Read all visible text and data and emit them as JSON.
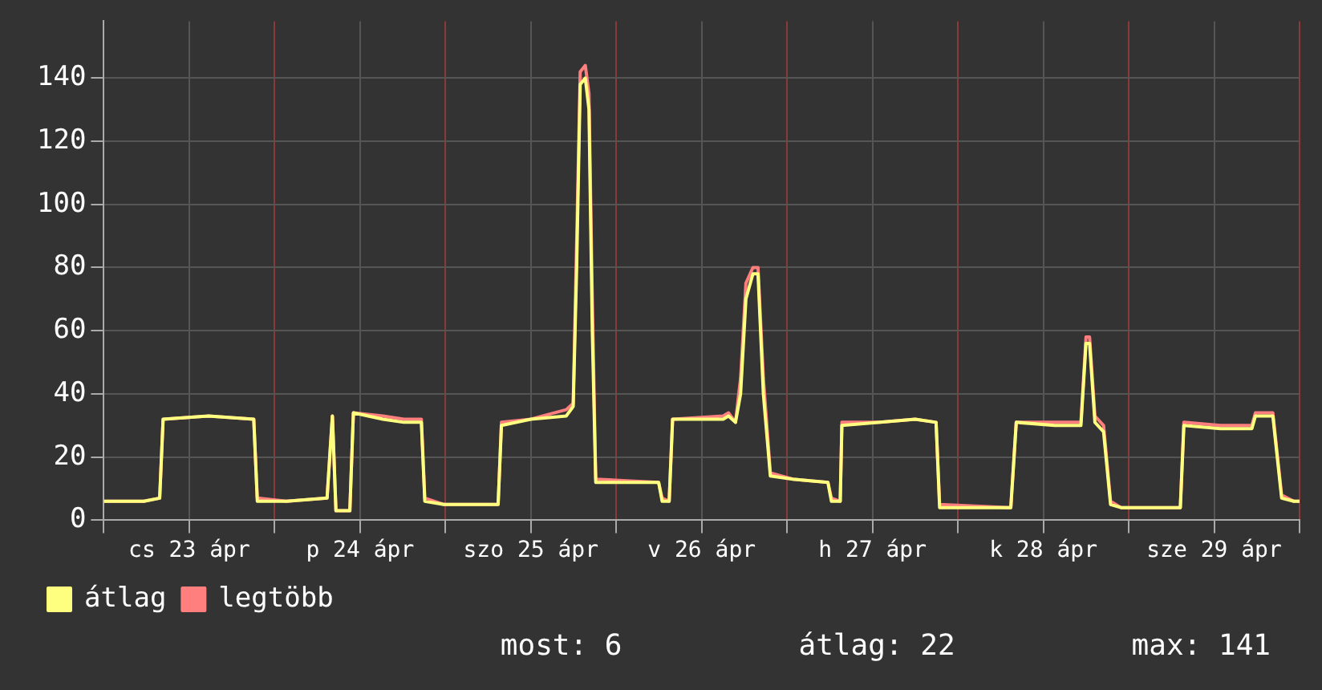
{
  "chart_data": {
    "type": "line",
    "marker": "none",
    "line_style": "solid",
    "grid": true,
    "legend": "bottom left",
    "xlim": [
      "--04-23T00:00",
      "--04-30T00:00"
    ],
    "xticks": [
      {
        "value": "--04-23T00:00",
        "label": null
      },
      {
        "value": "--04-23T12:00",
        "label": "cs 23 ápr"
      },
      {
        "value": "--04-24T00:00",
        "label": null
      },
      {
        "value": "--04-24T12:00",
        "label": "p 24 ápr"
      },
      {
        "value": "--04-25T00:00",
        "label": null
      },
      {
        "value": "--04-25T12:00",
        "label": "szo 25 ápr"
      },
      {
        "value": "--04-26T00:00",
        "label": null
      },
      {
        "value": "--04-26T12:00",
        "label": "v 26 ápr"
      },
      {
        "value": "--04-27T00:00",
        "label": null
      },
      {
        "value": "--04-27T12:00",
        "label": "h 27 ápr"
      },
      {
        "value": "--04-28T00:00",
        "label": null
      },
      {
        "value": "--04-28T12:00",
        "label": "k 28 ápr"
      },
      {
        "value": "--04-29T00:00",
        "label": null
      },
      {
        "value": "--04-29T12:00",
        "label": "sze 29 ápr"
      },
      {
        "value": "--04-30T00:00",
        "label": null
      }
    ],
    "ylim": [
      0,
      158
    ],
    "yticks": [
      0,
      20,
      40,
      60,
      80,
      100,
      120,
      140
    ],
    "x": [
      "--04-23T00:00",
      "--04-23T05:38",
      "--04-23T07:51",
      "--04-23T08:20",
      "--04-23T14:43",
      "--04-23T21:04",
      "--04-23T21:34",
      "--04-24T01:41",
      "--04-24T07:22",
      "--04-24T08:07",
      "--04-24T08:37",
      "--04-24T10:34",
      "--04-24T11:04",
      "--04-24T15:13",
      "--04-24T18:10",
      "--04-24T20:37",
      "--04-24T21:06",
      "--04-24T23:46",
      "--04-25T07:24",
      "--04-25T07:52",
      "--04-25T12:00",
      "--04-25T16:58",
      "--04-25T17:57",
      "--04-25T18:26",
      "--04-25T18:56",
      "--04-25T19:39",
      "--04-25T20:10",
      "--04-25T20:38",
      "--04-25T21:07",
      "--04-26T05:57",
      "--04-26T06:27",
      "--04-26T07:26",
      "--04-26T07:55",
      "--04-26T15:01",
      "--04-26T15:46",
      "--04-26T16:45",
      "--04-26T17:28",
      "--04-26T18:13",
      "--04-26T19:12",
      "--04-26T19:55",
      "--04-26T20:40",
      "--04-26T21:39",
      "--04-27T00:50",
      "--04-27T05:44",
      "--04-27T06:14",
      "--04-27T07:28",
      "--04-27T07:42",
      "--04-27T13:05",
      "--04-27T18:00",
      "--04-27T20:56",
      "--04-27T21:26",
      "--04-28T07:26",
      "--04-28T08:12",
      "--04-28T13:36",
      "--04-28T17:17",
      "--04-28T18:00",
      "--04-28T18:30",
      "--04-28T19:15",
      "--04-28T20:28",
      "--04-28T21:27",
      "--04-28T22:55",
      "--04-29T07:15",
      "--04-29T07:45",
      "--04-29T12:53",
      "--04-29T17:18",
      "--04-29T17:48",
      "--04-29T20:15",
      "--04-29T21:29",
      "--04-29T23:12",
      "--04-30T00:00"
    ],
    "series": [
      {
        "name": "legtöbb",
        "color": "#ff7f7f",
        "values": [
          6,
          6,
          7,
          32,
          33,
          32,
          7,
          6,
          7,
          33,
          3,
          3,
          34,
          33,
          32,
          32,
          7,
          5,
          5,
          31,
          32,
          35,
          37,
          88,
          142,
          144,
          135,
          70,
          13,
          12,
          7,
          6,
          32,
          33,
          34,
          31,
          45,
          75,
          80,
          80,
          45,
          15,
          13,
          12,
          7,
          6,
          31,
          31,
          32,
          31,
          5,
          4,
          31,
          31,
          31,
          58,
          58,
          33,
          30,
          6,
          4,
          4,
          31,
          30,
          30,
          34,
          34,
          8,
          6,
          6
        ]
      },
      {
        "name": "átlag",
        "color": "#ffff7f",
        "values": [
          6,
          6,
          7,
          32,
          33,
          32,
          6,
          6,
          7,
          33,
          3,
          3,
          34,
          32,
          31,
          31,
          6,
          5,
          5,
          30,
          32,
          33,
          36,
          80,
          138,
          140,
          130,
          60,
          12,
          12,
          6,
          6,
          32,
          32,
          33,
          31,
          40,
          70,
          78,
          78,
          40,
          14,
          13,
          12,
          6,
          6,
          30,
          31,
          32,
          31,
          4,
          4,
          31,
          30,
          30,
          56,
          56,
          31,
          28,
          5,
          4,
          4,
          30,
          29,
          29,
          33,
          33,
          7,
          6,
          6
        ]
      }
    ],
    "annotations": [
      "most: 6",
      "átlag: 22",
      "max: 141"
    ]
  }
}
